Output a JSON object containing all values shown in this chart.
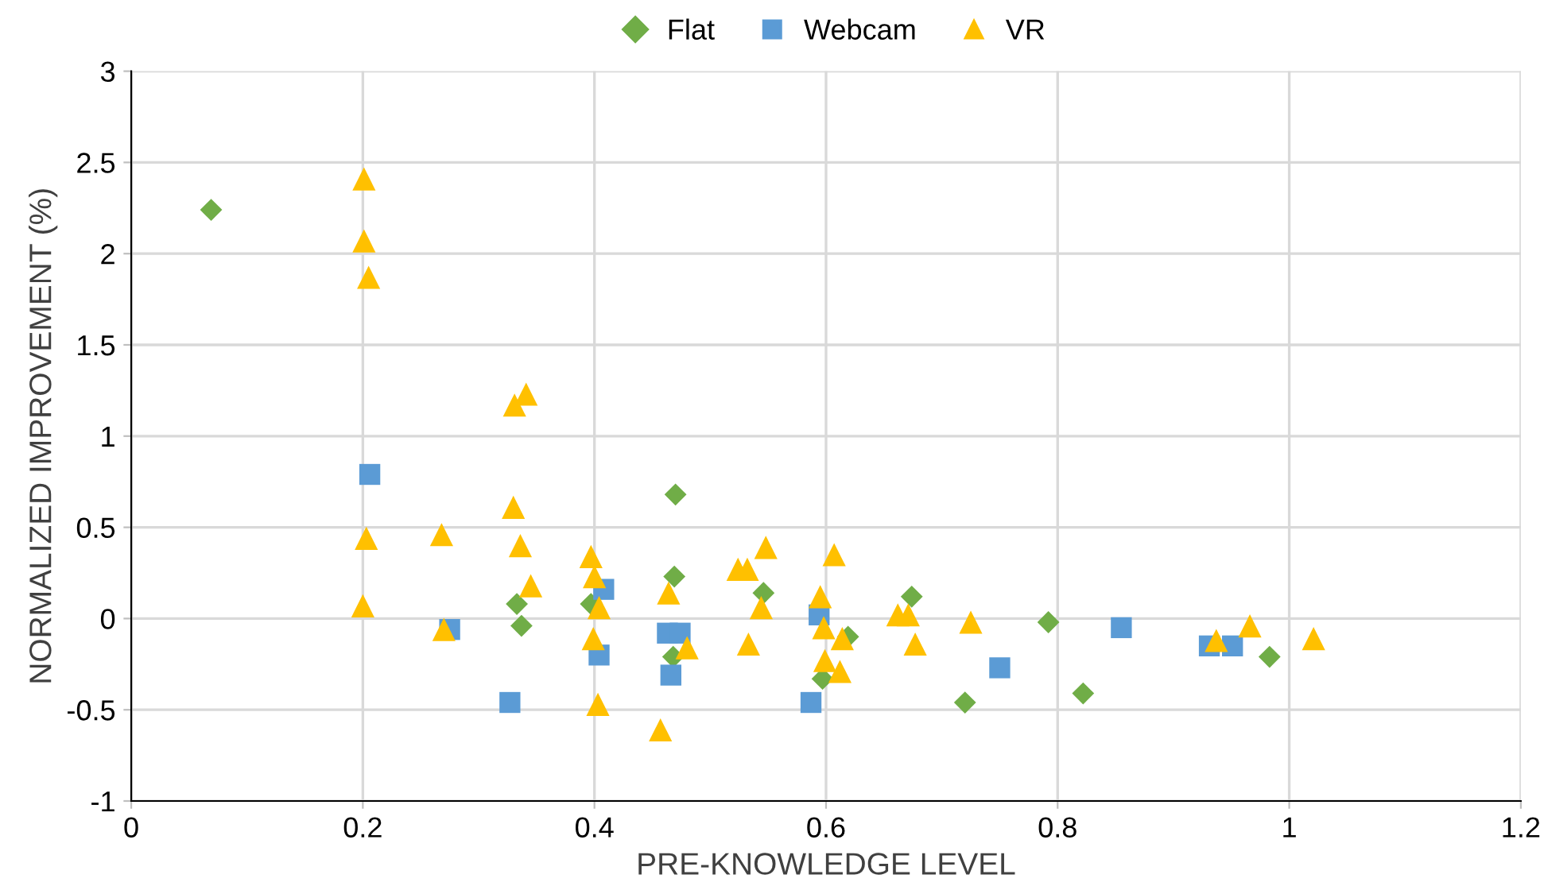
{
  "chart_data": {
    "type": "scatter",
    "xlabel": "PRE-KNOWLEDGE LEVEL",
    "ylabel": "NORMALIZED IMPROVEMENT (%)",
    "xlim": [
      0,
      1.2
    ],
    "ylim": [
      -1,
      3
    ],
    "xticks": [
      0,
      0.2,
      0.4,
      0.6,
      0.8,
      1,
      1.2
    ],
    "yticks": [
      -1,
      -0.5,
      0,
      0.5,
      1,
      1.5,
      2,
      2.5,
      3
    ],
    "grid": true,
    "legend": "top",
    "series": [
      {
        "name": "Flat",
        "color": "#70ad47",
        "marker": "diamond",
        "x": [
          0.069,
          0.47,
          0.469,
          0.546,
          0.333,
          0.337,
          0.397,
          0.468,
          0.619,
          0.597,
          0.674,
          0.792,
          0.72,
          0.822,
          0.983
        ],
        "values": [
          2.24,
          0.68,
          0.23,
          0.14,
          0.08,
          -0.04,
          0.08,
          -0.21,
          -0.1,
          -0.33,
          0.12,
          -0.02,
          -0.46,
          -0.41,
          -0.21
        ]
      },
      {
        "name": "Webcam",
        "color": "#5b9bd5",
        "marker": "square",
        "x": [
          0.206,
          0.275,
          0.327,
          0.408,
          0.404,
          0.463,
          0.474,
          0.466,
          0.594,
          0.587,
          0.855,
          0.75,
          0.931,
          0.951
        ],
        "values": [
          0.79,
          -0.06,
          -0.46,
          0.16,
          -0.2,
          -0.08,
          -0.08,
          -0.31,
          0.02,
          -0.46,
          -0.05,
          -0.27,
          -0.15,
          -0.15
        ]
      },
      {
        "name": "VR",
        "color": "#ffc000",
        "marker": "triangle",
        "x": [
          0.201,
          0.201,
          0.205,
          0.331,
          0.341,
          0.33,
          0.203,
          0.268,
          0.2,
          0.27,
          0.336,
          0.345,
          0.397,
          0.4,
          0.404,
          0.399,
          0.403,
          0.457,
          0.464,
          0.48,
          0.524,
          0.532,
          0.548,
          0.544,
          0.533,
          0.607,
          0.595,
          0.598,
          0.614,
          0.599,
          0.612,
          0.662,
          0.671,
          0.677,
          0.725,
          0.937,
          0.966,
          1.021
        ],
        "values": [
          2.41,
          2.07,
          1.87,
          1.17,
          1.23,
          0.61,
          0.44,
          0.46,
          0.07,
          -0.06,
          0.4,
          0.18,
          0.34,
          0.23,
          0.06,
          -0.11,
          -0.47,
          -0.61,
          0.14,
          -0.16,
          0.27,
          0.27,
          0.39,
          0.06,
          -0.14,
          0.35,
          0.12,
          -0.05,
          -0.11,
          -0.23,
          -0.29,
          0.02,
          0.02,
          -0.14,
          -0.02,
          -0.12,
          -0.04,
          -0.11
        ]
      }
    ]
  }
}
